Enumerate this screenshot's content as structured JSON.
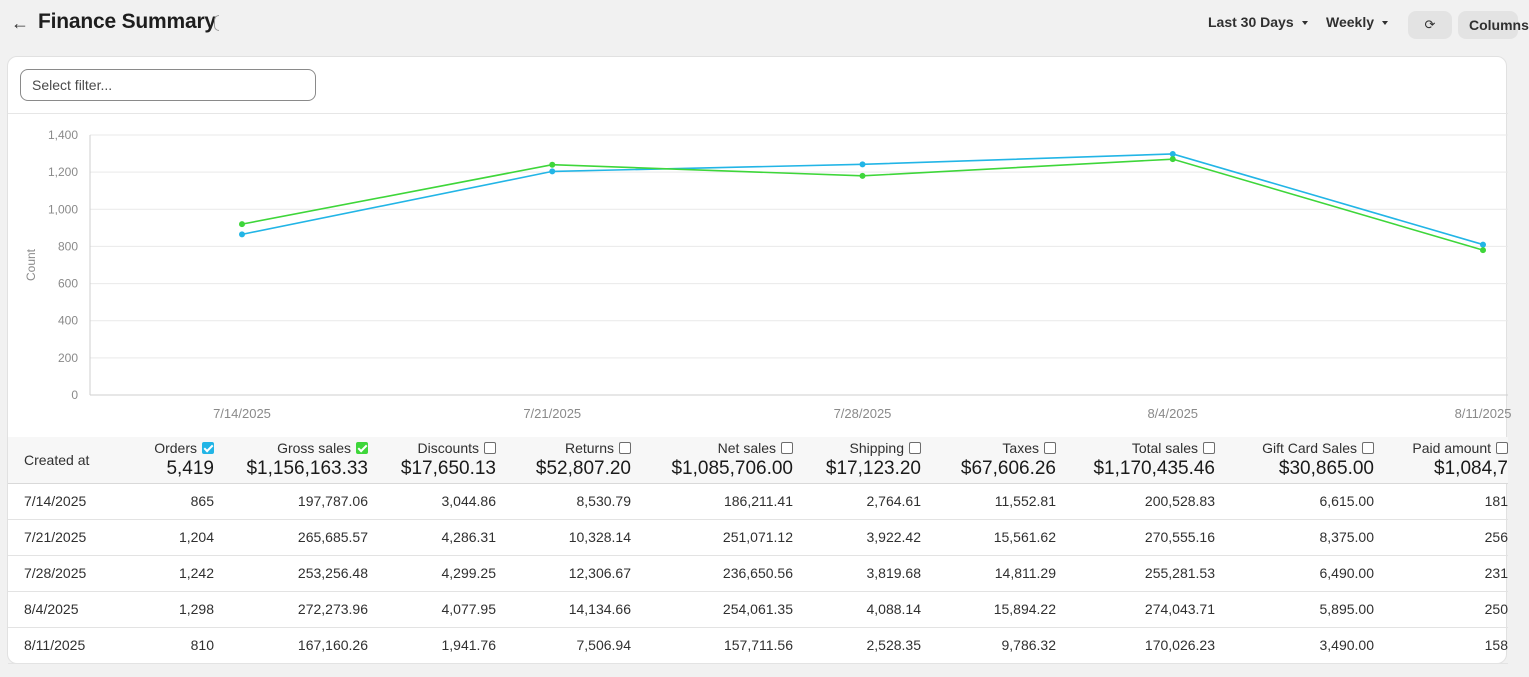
{
  "header": {
    "title": "Finance Summary",
    "range_label": "Last 30 Days",
    "interval_label": "Weekly",
    "columns_button": "Columns"
  },
  "filter": {
    "placeholder": "Select filter..."
  },
  "colors": {
    "orders": "#22b5e6",
    "gross_sales": "#3ed63a"
  },
  "icons": {
    "back": "arrow-left-icon",
    "refresh": "refresh-icon"
  },
  "chart_data": {
    "type": "line",
    "ylabel": "Count",
    "ylim": [
      0,
      1400
    ],
    "yticks": [
      0,
      200,
      400,
      600,
      800,
      1000,
      1200,
      1400
    ],
    "x": [
      "7/14/2025",
      "7/21/2025",
      "7/28/2025",
      "8/4/2025",
      "8/11/2025"
    ],
    "series": [
      {
        "name": "Orders",
        "values": [
          865,
          1204,
          1242,
          1298,
          810
        ]
      },
      {
        "name": "Gross sales",
        "values": [
          920,
          1240,
          1180,
          1270,
          780
        ]
      }
    ],
    "grid": true
  },
  "table": {
    "first_header": "Created at",
    "columns": [
      {
        "label": "Orders",
        "total": "5,419",
        "checked": true,
        "color": "#22b5e6"
      },
      {
        "label": "Gross sales",
        "total": "$1,156,163.33",
        "checked": true,
        "color": "#3ed63a"
      },
      {
        "label": "Discounts",
        "total": "$17,650.13",
        "checked": false
      },
      {
        "label": "Returns",
        "total": "$52,807.20",
        "checked": false
      },
      {
        "label": "Net sales",
        "total": "$1,085,706.00",
        "checked": false
      },
      {
        "label": "Shipping",
        "total": "$17,123.20",
        "checked": false
      },
      {
        "label": "Taxes",
        "total": "$67,606.26",
        "checked": false
      },
      {
        "label": "Total sales",
        "total": "$1,170,435.46",
        "checked": false
      },
      {
        "label": "Gift Card Sales",
        "total": "$30,865.00",
        "checked": false
      },
      {
        "label": "Paid amount",
        "total": "$1,084,7",
        "checked": false
      }
    ],
    "rows": [
      {
        "date": "7/14/2025",
        "cells": [
          "865",
          "197,787.06",
          "3,044.86",
          "8,530.79",
          "186,211.41",
          "2,764.61",
          "11,552.81",
          "200,528.83",
          "6,615.00",
          "181"
        ]
      },
      {
        "date": "7/21/2025",
        "cells": [
          "1,204",
          "265,685.57",
          "4,286.31",
          "10,328.14",
          "251,071.12",
          "3,922.42",
          "15,561.62",
          "270,555.16",
          "8,375.00",
          "256"
        ]
      },
      {
        "date": "7/28/2025",
        "cells": [
          "1,242",
          "253,256.48",
          "4,299.25",
          "12,306.67",
          "236,650.56",
          "3,819.68",
          "14,811.29",
          "255,281.53",
          "6,490.00",
          "231"
        ]
      },
      {
        "date": "8/4/2025",
        "cells": [
          "1,298",
          "272,273.96",
          "4,077.95",
          "14,134.66",
          "254,061.35",
          "4,088.14",
          "15,894.22",
          "274,043.71",
          "5,895.00",
          "250"
        ]
      },
      {
        "date": "8/11/2025",
        "cells": [
          "810",
          "167,160.26",
          "1,941.76",
          "7,506.94",
          "157,711.56",
          "2,528.35",
          "9,786.32",
          "170,026.23",
          "3,490.00",
          "158"
        ]
      }
    ]
  }
}
